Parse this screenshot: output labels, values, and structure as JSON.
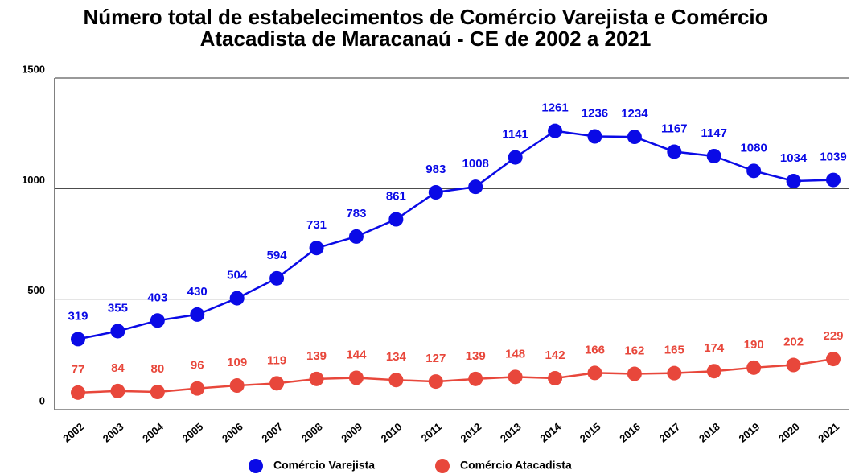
{
  "chart_data": {
    "type": "line",
    "title": "Número total de estabelecimentos de Comércio Varejista e Comércio Atacadista de Maracanaú - CE de 2002 a 2021",
    "categories": [
      "2002",
      "2003",
      "2004",
      "2005",
      "2006",
      "2007",
      "2008",
      "2009",
      "2010",
      "2011",
      "2012",
      "2013",
      "2014",
      "2015",
      "2016",
      "2017",
      "2018",
      "2019",
      "2020",
      "2021"
    ],
    "series": [
      {
        "name": "Comércio Varejista",
        "color": "#0a0ae6",
        "values": [
          319,
          355,
          403,
          430,
          504,
          594,
          731,
          783,
          861,
          983,
          1008,
          1141,
          1261,
          1236,
          1234,
          1167,
          1147,
          1080,
          1034,
          1039
        ]
      },
      {
        "name": "Comércio Atacadista",
        "color": "#e8473b",
        "values": [
          77,
          84,
          80,
          96,
          109,
          119,
          139,
          144,
          134,
          127,
          139,
          148,
          142,
          166,
          162,
          165,
          174,
          190,
          202,
          229
        ]
      }
    ],
    "ylim": [
      0,
      1500
    ],
    "yticks": [
      0,
      500,
      1000,
      1500
    ],
    "grid": true,
    "legend": "bottom"
  }
}
